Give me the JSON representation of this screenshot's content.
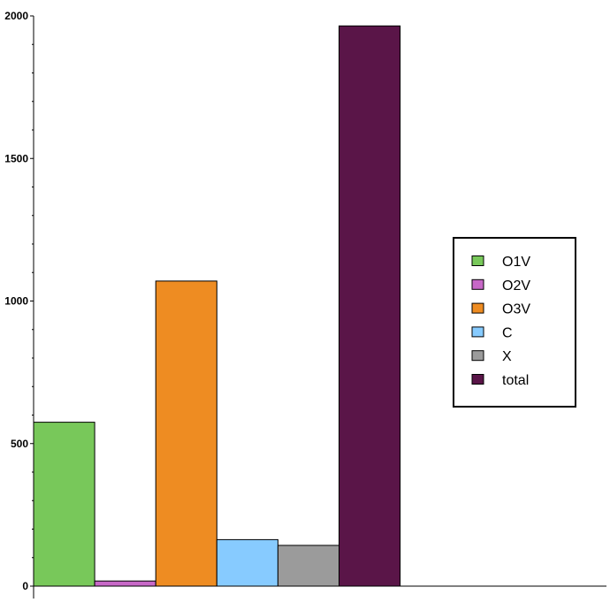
{
  "chart_data": {
    "type": "bar",
    "title": "",
    "xlabel": "",
    "ylabel": "",
    "ylim": [
      0,
      2000
    ],
    "yticks": [
      0,
      500,
      1000,
      1500,
      2000
    ],
    "grid": false,
    "legend_position": "right",
    "categories": [
      "O1V",
      "O2V",
      "O3V",
      "C",
      "X",
      "total"
    ],
    "values": [
      575,
      18,
      1070,
      163,
      143,
      1965
    ],
    "colors": [
      "#78c85a",
      "#c768c7",
      "#ee8c22",
      "#87cbff",
      "#9b9b9b",
      "#5a1548"
    ]
  }
}
